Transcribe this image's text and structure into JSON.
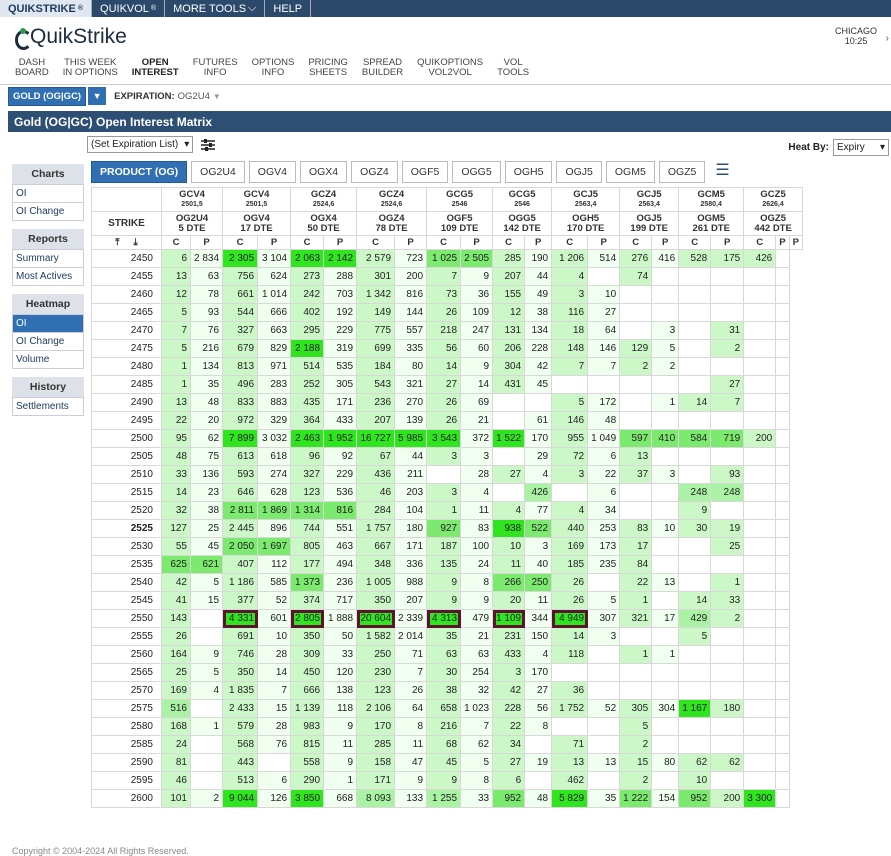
{
  "topbar": {
    "tabs": [
      {
        "label": "QUIKSTRIKE",
        "sup": "®"
      },
      {
        "label": "QUIKVOL",
        "sup": "®"
      },
      {
        "label": "MORE TOOLS",
        "chev": "⌵"
      },
      {
        "label": "HELP"
      }
    ]
  },
  "logo": {
    "text": "QuikStrike"
  },
  "clock": {
    "city": "CHICAGO",
    "time": "10:25"
  },
  "nav": [
    [
      "DASH",
      "BOARD"
    ],
    [
      "THIS WEEK",
      "IN OPTIONS"
    ],
    [
      "OPEN",
      "INTEREST"
    ],
    [
      "FUTURES",
      "INFO"
    ],
    [
      "OPTIONS",
      "INFO"
    ],
    [
      "PRICING",
      "SHEETS"
    ],
    [
      "SPREAD",
      "BUILDER"
    ],
    [
      "QUIKOPTIONS",
      "VOL2VOL"
    ],
    [
      "VOL",
      "TOOLS"
    ]
  ],
  "product": {
    "label": "GOLD (OG|GC)",
    "expiration_label": "EXPIRATION:",
    "expiration_value": "OG2U4"
  },
  "title": "Gold (OG|GC) Open Interest Matrix",
  "select_expiration": "(Set Expiration List)",
  "heatby": {
    "label": "Heat By:",
    "value": "Expiry"
  },
  "sidebar": {
    "sections": [
      {
        "title": "Charts",
        "items": [
          "OI",
          "OI Change"
        ]
      },
      {
        "title": "Reports",
        "items": [
          "Summary",
          "Most Actives"
        ]
      },
      {
        "title": "Heatmap",
        "items": [
          "OI",
          "OI Change",
          "Volume"
        ]
      },
      {
        "title": "History",
        "items": [
          "Settlements"
        ]
      }
    ]
  },
  "tabs": [
    "PRODUCT (OG)",
    "OG2U4",
    "OGV4",
    "OGX4",
    "OGZ4",
    "OGF5",
    "OGG5",
    "OGH5",
    "OGJ5",
    "OGM5",
    "OGZ5"
  ],
  "columns": [
    {
      "fut": "GCV4",
      "price": "2501,5",
      "opt": "OG2U4",
      "dte": "5 DTE"
    },
    {
      "fut": "GCV4",
      "price": "2501,5",
      "opt": "OGV4",
      "dte": "17 DTE"
    },
    {
      "fut": "GCZ4",
      "price": "2524,6",
      "opt": "OGX4",
      "dte": "50 DTE"
    },
    {
      "fut": "GCZ4",
      "price": "2524,6",
      "opt": "OGZ4",
      "dte": "78 DTE"
    },
    {
      "fut": "GCG5",
      "price": "2546",
      "opt": "OGF5",
      "dte": "109 DTE"
    },
    {
      "fut": "GCG5",
      "price": "2546",
      "opt": "OGG5",
      "dte": "142 DTE"
    },
    {
      "fut": "GCJ5",
      "price": "2563,4",
      "opt": "OGH5",
      "dte": "170 DTE"
    },
    {
      "fut": "GCJ5",
      "price": "2563,4",
      "opt": "OGJ5",
      "dte": "199 DTE"
    },
    {
      "fut": "GCM5",
      "price": "2580,4",
      "opt": "OGM5",
      "dte": "261 DTE"
    },
    {
      "fut": "GCZ5",
      "price": "2626,4",
      "opt": "OGZ5",
      "dte": "442 DTE"
    }
  ],
  "strike_label": "STRIKE",
  "rows": [
    [
      "2450",
      "6",
      "2 834",
      "2 305",
      "3 104",
      "2 063",
      "2 142",
      "2 579",
      "723",
      "1 025",
      "2 505",
      "285",
      "190",
      "1 206",
      "514",
      "276",
      "416",
      "528",
      "175",
      "426",
      ""
    ],
    [
      "2455",
      "13",
      "63",
      "756",
      "624",
      "273",
      "288",
      "301",
      "200",
      "7",
      "9",
      "207",
      "44",
      "4",
      "",
      "74",
      "",
      "",
      "",
      "",
      ""
    ],
    [
      "2460",
      "12",
      "78",
      "661",
      "1 014",
      "242",
      "703",
      "1 342",
      "816",
      "73",
      "36",
      "155",
      "49",
      "3",
      "10",
      "",
      "",
      "",
      "",
      "",
      ""
    ],
    [
      "2465",
      "5",
      "93",
      "544",
      "666",
      "402",
      "192",
      "149",
      "144",
      "26",
      "109",
      "12",
      "38",
      "116",
      "27",
      "",
      "",
      "",
      "",
      "",
      ""
    ],
    [
      "2470",
      "7",
      "76",
      "327",
      "663",
      "295",
      "229",
      "775",
      "557",
      "218",
      "247",
      "131",
      "134",
      "18",
      "64",
      "",
      "3",
      "",
      "31",
      "",
      ""
    ],
    [
      "2475",
      "5",
      "216",
      "679",
      "829",
      "2 188",
      "319",
      "699",
      "335",
      "56",
      "60",
      "206",
      "228",
      "148",
      "146",
      "129",
      "5",
      "",
      "2",
      "",
      ""
    ],
    [
      "2480",
      "1",
      "134",
      "813",
      "971",
      "514",
      "535",
      "184",
      "80",
      "14",
      "9",
      "304",
      "42",
      "7",
      "7",
      "2",
      "2",
      "",
      "",
      "",
      ""
    ],
    [
      "2485",
      "1",
      "35",
      "496",
      "283",
      "252",
      "305",
      "543",
      "321",
      "27",
      "14",
      "431",
      "45",
      "",
      "",
      "",
      "",
      "",
      "27",
      "",
      ""
    ],
    [
      "2490",
      "13",
      "48",
      "833",
      "883",
      "435",
      "171",
      "236",
      "270",
      "26",
      "69",
      "",
      "",
      "5",
      "172",
      "",
      "1",
      "14",
      "7",
      "",
      ""
    ],
    [
      "2495",
      "22",
      "20",
      "972",
      "329",
      "364",
      "433",
      "207",
      "139",
      "26",
      "21",
      "",
      "61",
      "146",
      "48",
      "",
      "",
      "",
      "",
      "",
      ""
    ],
    [
      "2500",
      "95",
      "62",
      "7 899",
      "3 032",
      "2 463",
      "1 952",
      "16 727",
      "5 985",
      "3 543",
      "372",
      "1 522",
      "170",
      "955",
      "1 049",
      "597",
      "410",
      "584",
      "719",
      "200",
      ""
    ],
    [
      "2505",
      "48",
      "75",
      "613",
      "618",
      "96",
      "92",
      "67",
      "44",
      "3",
      "3",
      "",
      "29",
      "72",
      "6",
      "13",
      "",
      "",
      "",
      "",
      ""
    ],
    [
      "2510",
      "33",
      "136",
      "593",
      "274",
      "327",
      "229",
      "436",
      "211",
      "",
      "28",
      "27",
      "4",
      "3",
      "22",
      "37",
      "3",
      "",
      "93",
      "",
      ""
    ],
    [
      "2515",
      "14",
      "23",
      "646",
      "628",
      "123",
      "536",
      "46",
      "203",
      "3",
      "4",
      "",
      "426",
      "",
      "6",
      "",
      "",
      "248",
      "248",
      "",
      ""
    ],
    [
      "2520",
      "32",
      "38",
      "2 811",
      "1 869",
      "1 314",
      "816",
      "284",
      "104",
      "1",
      "11",
      "4",
      "77",
      "4",
      "34",
      "",
      "",
      "9",
      "",
      "",
      ""
    ],
    [
      "2525",
      "127",
      "25",
      "2 445",
      "896",
      "744",
      "551",
      "1 757",
      "180",
      "927",
      "83",
      "938",
      "522",
      "440",
      "253",
      "83",
      "10",
      "30",
      "19",
      "",
      ""
    ],
    [
      "2530",
      "55",
      "45",
      "2 050",
      "1 697",
      "805",
      "463",
      "667",
      "171",
      "187",
      "100",
      "10",
      "3",
      "169",
      "173",
      "17",
      "",
      "",
      "25",
      "",
      ""
    ],
    [
      "2535",
      "625",
      "621",
      "407",
      "112",
      "177",
      "494",
      "348",
      "336",
      "135",
      "24",
      "11",
      "40",
      "185",
      "235",
      "84",
      "",
      "",
      "",
      "",
      ""
    ],
    [
      "2540",
      "42",
      "5",
      "1 186",
      "585",
      "1 373",
      "236",
      "1 005",
      "988",
      "9",
      "8",
      "266",
      "250",
      "26",
      "",
      "22",
      "13",
      "",
      "1",
      "",
      ""
    ],
    [
      "2545",
      "41",
      "15",
      "377",
      "52",
      "374",
      "717",
      "350",
      "207",
      "9",
      "9",
      "20",
      "11",
      "26",
      "5",
      "1",
      "",
      "14",
      "33",
      "",
      ""
    ],
    [
      "2550",
      "143",
      "",
      "4 331",
      "601",
      "2 805",
      "1 888",
      "20 604",
      "2 339",
      "4 313",
      "479",
      "1 109",
      "344",
      "4 949",
      "307",
      "321",
      "17",
      "429",
      "2",
      "",
      ""
    ],
    [
      "2555",
      "26",
      "",
      "691",
      "10",
      "350",
      "50",
      "1 582",
      "2 014",
      "35",
      "21",
      "231",
      "150",
      "14",
      "3",
      "",
      "",
      "5",
      "",
      "",
      ""
    ],
    [
      "2560",
      "164",
      "9",
      "746",
      "28",
      "309",
      "33",
      "250",
      "71",
      "63",
      "63",
      "433",
      "4",
      "118",
      "",
      "1",
      "1",
      "",
      "",
      "",
      ""
    ],
    [
      "2565",
      "25",
      "5",
      "350",
      "14",
      "450",
      "120",
      "230",
      "7",
      "30",
      "254",
      "3",
      "170",
      "",
      "",
      "",
      "",
      "",
      "",
      "",
      ""
    ],
    [
      "2570",
      "169",
      "4",
      "1 835",
      "7",
      "666",
      "138",
      "123",
      "26",
      "38",
      "32",
      "42",
      "27",
      "36",
      "",
      "",
      "",
      "",
      "",
      "",
      ""
    ],
    [
      "2575",
      "516",
      "",
      "2 433",
      "15",
      "1 139",
      "118",
      "2 106",
      "64",
      "658",
      "1 023",
      "228",
      "56",
      "1 752",
      "52",
      "305",
      "304",
      "1 167",
      "180",
      "",
      ""
    ],
    [
      "2580",
      "168",
      "1",
      "579",
      "28",
      "983",
      "9",
      "170",
      "8",
      "216",
      "7",
      "22",
      "8",
      "",
      "",
      "5",
      "",
      "",
      "",
      "",
      ""
    ],
    [
      "2585",
      "24",
      "",
      "568",
      "76",
      "815",
      "11",
      "285",
      "11",
      "68",
      "62",
      "34",
      "",
      "71",
      "",
      "2",
      "",
      "",
      "",
      "",
      ""
    ],
    [
      "2590",
      "81",
      "",
      "443",
      "",
      "558",
      "9",
      "158",
      "47",
      "45",
      "5",
      "27",
      "19",
      "13",
      "13",
      "15",
      "80",
      "62",
      "62",
      "",
      ""
    ],
    [
      "2595",
      "46",
      "",
      "513",
      "6",
      "290",
      "1",
      "171",
      "9",
      "9",
      "8",
      "6",
      "",
      "462",
      "",
      "2",
      "",
      "10",
      "",
      "",
      ""
    ],
    [
      "2600",
      "101",
      "2",
      "9 044",
      "126",
      "3 850",
      "668",
      "8 093",
      "133",
      "1 255",
      "33",
      "952",
      "48",
      "5 829",
      "35",
      "1 222",
      "154",
      "952",
      "200",
      "3 300",
      ""
    ]
  ],
  "copyright": "Copyright © 2004-2024 All Rights Reserved."
}
